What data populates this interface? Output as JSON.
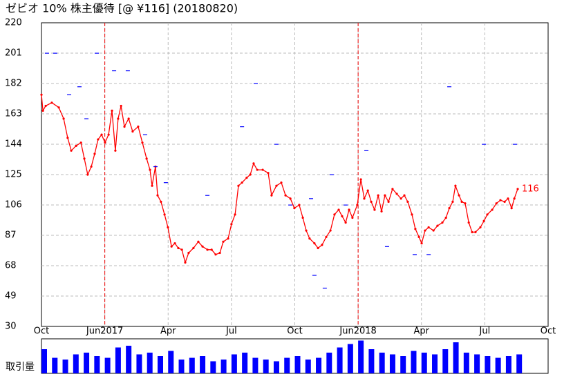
{
  "chart_data": {
    "type": "line",
    "title": "ゼビオ 10%  株主優待  [@ ¥116] (20180820)",
    "xlim": [
      0,
      24
    ],
    "xticks": [
      {
        "value": 0,
        "label": "Oct"
      },
      {
        "value": 3,
        "label": "Jun2017"
      },
      {
        "value": 6,
        "label": "Apr"
      },
      {
        "value": 9,
        "label": "Jul"
      },
      {
        "value": 12,
        "label": "Oct"
      },
      {
        "value": 15,
        "label": "Jun2018"
      },
      {
        "value": 18,
        "label": "Apr"
      },
      {
        "value": 21,
        "label": "Jul"
      },
      {
        "value": 24,
        "label": "Oct"
      }
    ],
    "year_lines": [
      3,
      15
    ],
    "ylim": [
      30,
      220
    ],
    "yticks": [
      30,
      49,
      68,
      87,
      106,
      125,
      144,
      163,
      182,
      201,
      220
    ],
    "grid": true,
    "series": [
      {
        "color": "#ff0000",
        "x": [
          0,
          0.07,
          0.2,
          0.49,
          0.82,
          1.05,
          1.24,
          1.41,
          1.64,
          1.87,
          2.03,
          2.19,
          2.36,
          2.52,
          2.68,
          2.85,
          3.01,
          3.18,
          3.34,
          3.5,
          3.63,
          3.77,
          3.93,
          4.13,
          4.32,
          4.58,
          4.78,
          4.98,
          5.14,
          5.24,
          5.4,
          5.5,
          5.66,
          5.83,
          5.99,
          6.16,
          6.32,
          6.48,
          6.65,
          6.81,
          6.97,
          7.2,
          7.43,
          7.63,
          7.86,
          8.06,
          8.25,
          8.45,
          8.61,
          8.84,
          9.0,
          9.17,
          9.33,
          9.5,
          9.72,
          9.89,
          10.05,
          10.22,
          10.48,
          10.74,
          10.9,
          11.13,
          11.36,
          11.56,
          11.79,
          11.98,
          12.21,
          12.38,
          12.54,
          12.7,
          12.93,
          13.1,
          13.29,
          13.49,
          13.69,
          13.88,
          14.08,
          14.24,
          14.41,
          14.57,
          14.73,
          14.96,
          15.13,
          15.29,
          15.46,
          15.62,
          15.78,
          15.95,
          16.11,
          16.27,
          16.44,
          16.63,
          16.83,
          17.03,
          17.19,
          17.35,
          17.55,
          17.71,
          17.88,
          18.01,
          18.17,
          18.34,
          18.57,
          18.76,
          18.99,
          19.16,
          19.32,
          19.48,
          19.61,
          19.78,
          19.91,
          20.07,
          20.24,
          20.4,
          20.56,
          20.79,
          20.96,
          21.12,
          21.35,
          21.55,
          21.74,
          21.94,
          22.1,
          22.27,
          22.4,
          22.56
        ],
        "values": [
          175,
          165,
          168,
          170,
          167,
          160,
          148,
          140,
          143,
          145,
          135,
          125,
          130,
          138,
          147,
          150,
          145,
          150,
          165,
          140,
          160,
          168,
          155,
          160,
          152,
          155,
          145,
          135,
          128,
          118,
          130,
          112,
          108,
          100,
          92,
          80,
          82,
          79,
          78,
          70,
          76,
          79,
          83,
          80,
          78,
          78,
          75,
          76,
          83,
          85,
          94,
          100,
          118,
          120,
          123,
          125,
          132,
          128,
          128,
          126,
          112,
          118,
          120,
          112,
          110,
          104,
          106,
          98,
          90,
          85,
          82,
          79,
          81,
          86,
          90,
          100,
          103,
          99,
          95,
          103,
          98,
          106,
          122,
          110,
          115,
          108,
          103,
          112,
          102,
          112,
          108,
          116,
          113,
          110,
          112,
          108,
          100,
          91,
          86,
          82,
          90,
          92,
          90,
          93,
          95,
          98,
          104,
          108,
          118,
          112,
          108,
          107,
          95,
          89,
          89,
          92,
          96,
          100,
          103,
          107,
          109,
          108,
          110,
          104,
          110,
          116
        ]
      },
      {
        "type": "scatter",
        "color": "#0000ff",
        "x": [
          0.26,
          0.65,
          2.62,
          3.44,
          4.09,
          1.31,
          1.8,
          2.13,
          4.91,
          5.4,
          5.89,
          7.86,
          9.5,
          10.15,
          11.13,
          11.79,
          12.77,
          12.93,
          13.42,
          13.75,
          14.41,
          15.39,
          16.37,
          17.68,
          18.34,
          19.32,
          20.96,
          22.43
        ],
        "values": [
          201,
          201,
          201,
          190,
          190,
          175,
          180,
          160,
          150,
          130,
          120,
          112,
          155,
          182,
          144,
          106,
          110,
          62,
          54,
          125,
          106,
          140,
          80,
          75,
          75,
          180,
          144,
          144
        ]
      }
    ],
    "volume": {
      "label": "取引量",
      "color": "#0000ff",
      "ylim": [
        0,
        100
      ],
      "x": [
        0,
        0.5,
        1,
        1.5,
        2,
        2.5,
        3,
        3.5,
        4,
        4.5,
        5,
        5.5,
        6,
        6.5,
        7,
        7.5,
        8,
        8.5,
        9,
        9.5,
        10,
        10.5,
        11,
        11.5,
        12,
        12.5,
        13,
        13.5,
        14,
        14.5,
        15,
        15.5,
        16,
        16.5,
        17,
        17.5,
        18,
        18.5,
        19,
        19.5,
        20,
        20.5,
        21,
        21.5,
        22,
        22.5
      ],
      "values": [
        70,
        45,
        40,
        55,
        60,
        50,
        45,
        75,
        80,
        55,
        60,
        50,
        65,
        40,
        45,
        50,
        35,
        40,
        55,
        60,
        45,
        40,
        35,
        45,
        50,
        40,
        45,
        60,
        75,
        85,
        95,
        70,
        60,
        55,
        50,
        65,
        60,
        55,
        70,
        90,
        60,
        55,
        50,
        45,
        50,
        55
      ]
    }
  }
}
